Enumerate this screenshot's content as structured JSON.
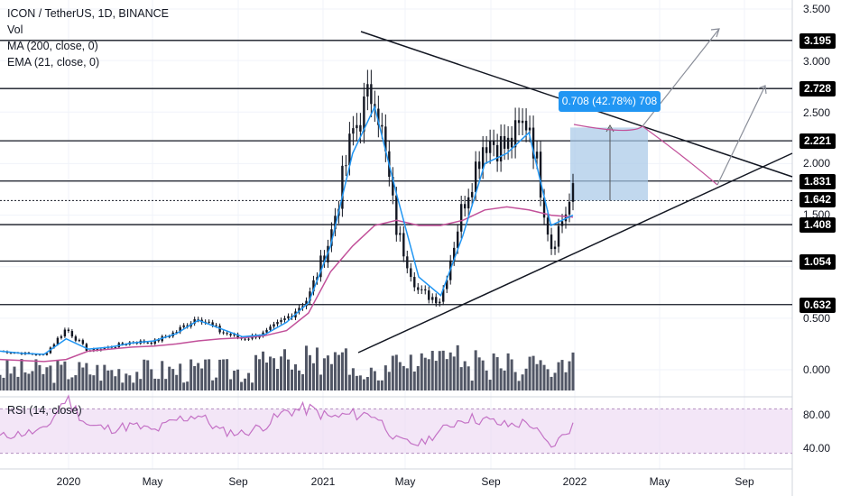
{
  "legend": {
    "title": "ICON / TetherUS, 1D, BINANCE",
    "vol": "Vol",
    "ma": "MA (200, close, 0)",
    "ema": "EMA (21, close, 0)",
    "rsi": "RSI (14, close)"
  },
  "measure_label": "0.708 (42.78%) 708",
  "colors": {
    "candle": "#131722",
    "ema": "#2196f3",
    "ma": "#c2519a",
    "rsi": "#c472c6",
    "rsi_band": "#ead1f0",
    "measure_fill": "#a7c7e7",
    "badge_bg": "#000000"
  },
  "chart_data": {
    "type": "line",
    "title": "ICON / TetherUS, 1D, BINANCE",
    "x": [
      "2019-11",
      "2019-12",
      "2020-01",
      "2020-02",
      "2020-03",
      "2020-04",
      "2020-05",
      "2020-06",
      "2020-07",
      "2020-08",
      "2020-09",
      "2020-10",
      "2020-11",
      "2020-12",
      "2021-01",
      "2021-02",
      "2021-03",
      "2021-04",
      "2021-05",
      "2021-06",
      "2021-07",
      "2021-08",
      "2021-09",
      "2021-10",
      "2021-11",
      "2021-12",
      "2022-01"
    ],
    "series": [
      {
        "name": "ICON / TetherUS",
        "values": [
          0.18,
          0.16,
          0.14,
          0.4,
          0.18,
          0.22,
          0.27,
          0.27,
          0.37,
          0.52,
          0.37,
          0.3,
          0.35,
          0.5,
          0.7,
          1.3,
          2.3,
          2.75,
          1.35,
          0.75,
          0.68,
          1.6,
          2.25,
          2.15,
          2.45,
          1.2,
          1.7
        ]
      },
      {
        "name": "MA (200, close, 0)",
        "values": [
          0.1,
          0.09,
          0.08,
          0.1,
          0.18,
          0.2,
          0.22,
          0.23,
          0.25,
          0.28,
          0.3,
          0.31,
          0.33,
          0.38,
          0.55,
          0.95,
          1.2,
          1.4,
          1.45,
          1.4,
          1.4,
          1.45,
          1.55,
          1.58,
          1.55,
          1.5,
          1.48
        ]
      },
      {
        "name": "EMA (21, close, 0)",
        "values": [
          0.18,
          0.16,
          0.15,
          0.3,
          0.2,
          0.22,
          0.26,
          0.28,
          0.35,
          0.48,
          0.4,
          0.32,
          0.34,
          0.46,
          0.65,
          1.2,
          2.1,
          2.55,
          1.7,
          0.9,
          0.72,
          1.3,
          2.0,
          2.1,
          2.3,
          1.4,
          1.5
        ]
      },
      {
        "name": "RSI (14, close)",
        "values": [
          45,
          48,
          50,
          80,
          55,
          52,
          55,
          50,
          60,
          65,
          50,
          48,
          55,
          68,
          70,
          62,
          65,
          65,
          42,
          38,
          50,
          62,
          60,
          55,
          58,
          35,
          55
        ]
      }
    ],
    "ylim": [
      0,
      3.5
    ],
    "y_ticks": [
      0.0,
      0.5,
      1.0,
      1.5,
      2.0,
      2.5,
      3.0,
      3.5
    ],
    "y_tick_labels": [
      "0.000",
      "0.500",
      "1.000",
      "1.500",
      "2.000",
      "2.500",
      "3.000",
      "3.500"
    ],
    "x_tick_labels": [
      "2020",
      "May",
      "Sep",
      "2021",
      "May",
      "Sep",
      "2022",
      "May",
      "Sep"
    ],
    "levels": [
      3.195,
      2.728,
      2.221,
      1.831,
      1.642,
      1.408,
      1.054,
      0.632
    ],
    "level_labels": [
      "3.195",
      "2.728",
      "2.221",
      "1.831",
      "1.642",
      "1.408",
      "1.054",
      "0.632"
    ],
    "rsi_ticks": [
      "80.00",
      "40.00"
    ],
    "rsi_band": [
      30,
      70
    ],
    "grid": true,
    "legend_position": "top-left"
  }
}
